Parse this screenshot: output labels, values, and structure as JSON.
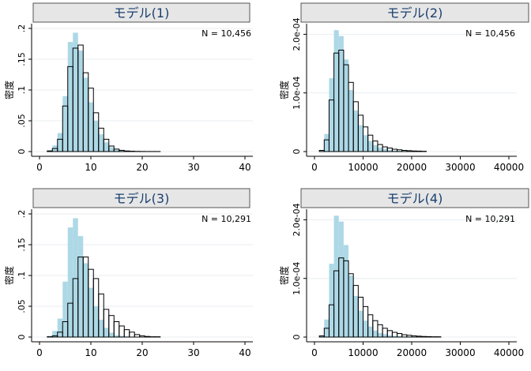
{
  "chart_data": [
    {
      "type": "bar",
      "title": "モデル(1)",
      "ylabel": "密度",
      "xlabel": "",
      "annotation": "N = 10,456",
      "xlim": [
        0,
        40
      ],
      "ylim": [
        0,
        0.2
      ],
      "xticks": [
        0,
        10,
        20,
        30,
        40
      ],
      "xtick_labels": [
        "0",
        "10",
        "20",
        "30",
        "40"
      ],
      "yticks": [
        0,
        0.05,
        0.1,
        0.15,
        0.2
      ],
      "ytick_labels": [
        "0",
        ".05",
        ".1",
        ".15",
        ".2"
      ],
      "series": [
        {
          "style": "filled-lightblue",
          "bin_start": 1.5,
          "bin_width": 1,
          "values": [
            0.002,
            0.01,
            0.03,
            0.09,
            0.178,
            0.193,
            0.164,
            0.12,
            0.08,
            0.05,
            0.028,
            0.015,
            0.007,
            0.003,
            0.002,
            0.001,
            0.0005,
            0.0003,
            0.0002,
            0.0001,
            0.0001,
            0.0001
          ]
        },
        {
          "style": "outline-black",
          "bin_start": 1.5,
          "bin_width": 1,
          "values": [
            0.001,
            0.005,
            0.02,
            0.074,
            0.138,
            0.168,
            0.173,
            0.128,
            0.103,
            0.063,
            0.038,
            0.02,
            0.009,
            0.004,
            0.002,
            0.001,
            0.0006,
            0.0003,
            0.0002,
            0.0001,
            0.0001,
            0.0001
          ]
        }
      ]
    },
    {
      "type": "bar",
      "title": "モデル(2)",
      "ylabel": "密度",
      "xlabel": "",
      "annotation": "N = 10,456",
      "xlim": [
        0,
        40000
      ],
      "ylim": [
        0,
        0.00021
      ],
      "xticks": [
        0,
        10000,
        20000,
        30000,
        40000
      ],
      "xtick_labels": [
        "0",
        "10000",
        "20000",
        "30000",
        "40000"
      ],
      "yticks": [
        0,
        0.0001,
        0.0002
      ],
      "ytick_labels": [
        "0",
        "1.0e-04",
        "2.0e-04"
      ],
      "series": [
        {
          "style": "filled-lightblue",
          "bin_start": 1000,
          "bin_width": 1000,
          "values": [
            2e-06,
            3e-05,
            0.000125,
            0.000207,
            0.000197,
            0.000157,
            0.000105,
            7e-05,
            4.5e-05,
            2.8e-05,
            1.8e-05,
            1.1e-05,
            7e-06,
            5e-06,
            3e-06,
            2e-06,
            1.5e-06,
            1e-06,
            1e-06,
            8e-07,
            5e-07,
            5e-07
          ]
        },
        {
          "style": "outline-black",
          "bin_start": 1000,
          "bin_width": 1000,
          "values": [
            2e-06,
            2e-05,
            8.8e-05,
            0.000168,
            0.000173,
            0.000148,
            0.000118,
            8.5e-05,
            6.2e-05,
            4.2e-05,
            2.8e-05,
            1.8e-05,
            1.2e-05,
            8e-06,
            6e-06,
            4e-06,
            3e-06,
            2e-06,
            1.5e-06,
            1e-06,
            8e-07,
            5e-07
          ]
        }
      ]
    },
    {
      "type": "bar",
      "title": "モデル(3)",
      "ylabel": "密度",
      "xlabel": "",
      "annotation": "N = 10,291",
      "xlim": [
        0,
        40
      ],
      "ylim": [
        0,
        0.2
      ],
      "xticks": [
        0,
        10,
        20,
        30,
        40
      ],
      "xtick_labels": [
        "0",
        "10",
        "20",
        "30",
        "40"
      ],
      "yticks": [
        0,
        0.05,
        0.1,
        0.15,
        0.2
      ],
      "ytick_labels": [
        "0",
        ".05",
        ".1",
        ".15",
        ".2"
      ],
      "series": [
        {
          "style": "filled-lightblue",
          "bin_start": 1.5,
          "bin_width": 1,
          "values": [
            0.002,
            0.01,
            0.03,
            0.09,
            0.178,
            0.193,
            0.164,
            0.12,
            0.08,
            0.05,
            0.028,
            0.015,
            0.007,
            0.003,
            0.002,
            0.001,
            0.0005,
            0.0003,
            0.0002,
            0.0001,
            0.0001,
            0.0001
          ]
        },
        {
          "style": "outline-black",
          "bin_start": 1.5,
          "bin_width": 1,
          "values": [
            0.0005,
            0.002,
            0.008,
            0.025,
            0.055,
            0.095,
            0.13,
            0.13,
            0.11,
            0.095,
            0.07,
            0.045,
            0.035,
            0.025,
            0.018,
            0.012,
            0.008,
            0.004,
            0.002,
            0.001,
            0.0005,
            0.0005
          ]
        }
      ]
    },
    {
      "type": "bar",
      "title": "モデル(4)",
      "ylabel": "密度",
      "xlabel": "",
      "annotation": "N = 10,291",
      "xlim": [
        0,
        40000
      ],
      "ylim": [
        0,
        0.00021
      ],
      "xticks": [
        0,
        10000,
        20000,
        30000,
        40000
      ],
      "xtick_labels": [
        "0",
        "10000",
        "20000",
        "30000",
        "40000"
      ],
      "yticks": [
        0,
        0.0001,
        0.0002
      ],
      "ytick_labels": [
        "0",
        "1.0e-04",
        "2.0e-04"
      ],
      "series": [
        {
          "style": "filled-lightblue",
          "bin_start": 1000,
          "bin_width": 1000,
          "values": [
            2e-06,
            3e-05,
            0.000125,
            0.000207,
            0.000197,
            0.000157,
            0.000105,
            7e-05,
            4.5e-05,
            2.8e-05,
            1.8e-05,
            1.1e-05,
            7e-06,
            5e-06,
            3e-06,
            2e-06,
            1.5e-06,
            1e-06,
            1e-06,
            8e-07,
            5e-07,
            5e-07
          ]
        },
        {
          "style": "outline-black",
          "bin_start": 1000,
          "bin_width": 1000,
          "values": [
            2e-06,
            1.5e-05,
            5.5e-05,
            0.000113,
            0.000135,
            0.00013,
            0.000108,
            8.8e-05,
            6.8e-05,
            5.2e-05,
            3.8e-05,
            2.8e-05,
            2.1e-05,
            1.5e-05,
            1.1e-05,
            8e-06,
            6e-06,
            4e-06,
            3e-06,
            2e-06,
            1.5e-06,
            1e-06,
            8e-07,
            5e-07,
            5e-07
          ]
        }
      ]
    }
  ],
  "colors": {
    "fill_series": "#add8e6",
    "outline_series": "#000000",
    "title_bar_bg": "#e6e6e6",
    "title_text": "#1a3f6f",
    "grid": "#e8eef2"
  }
}
